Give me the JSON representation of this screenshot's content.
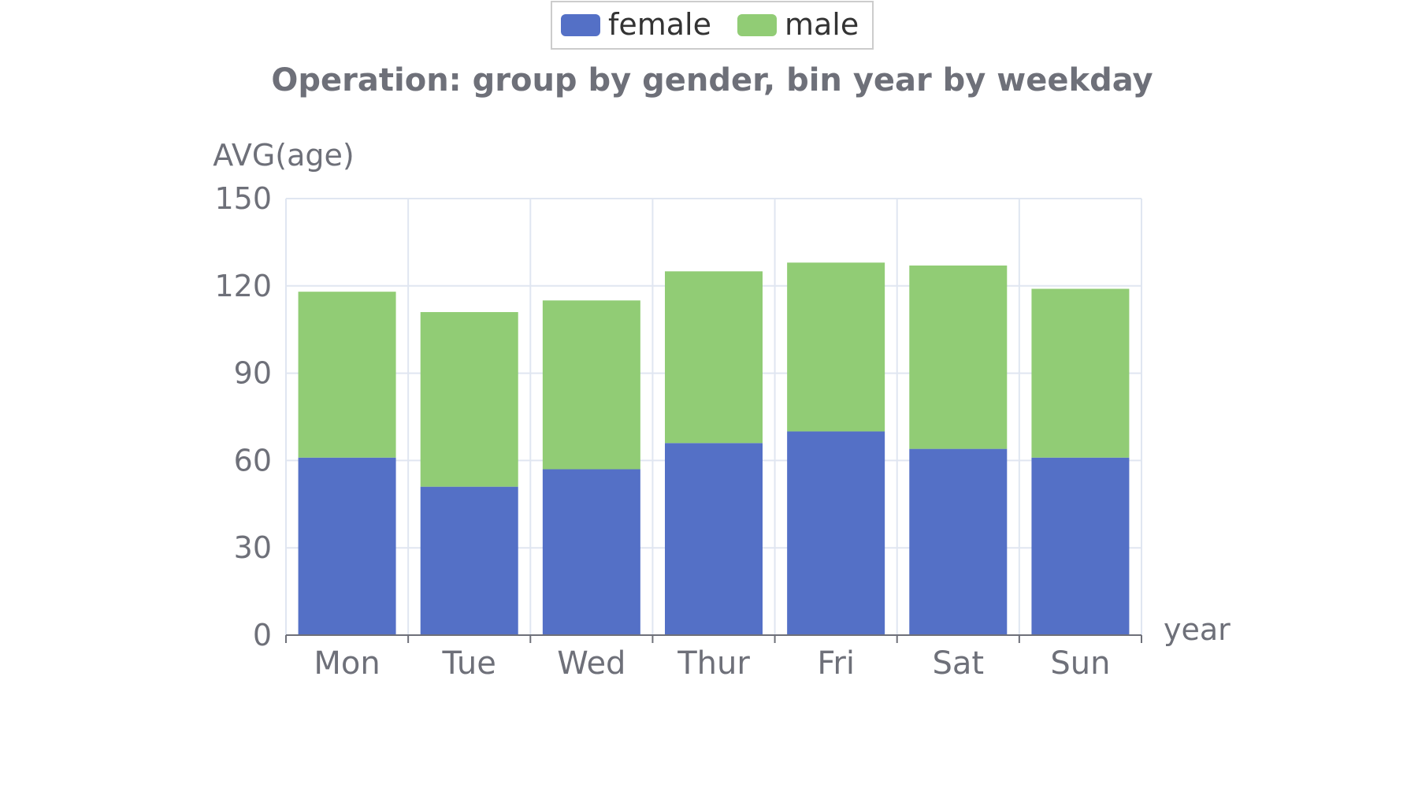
{
  "chart_data": {
    "type": "bar",
    "stacked": true,
    "title": "Operation: group by gender, bin year by weekday",
    "xlabel": "year",
    "ylabel": "AVG(age)",
    "ylim": [
      0,
      150
    ],
    "yticks": [
      "0",
      "30",
      "60",
      "90",
      "120",
      "150"
    ],
    "categories": [
      "Mon",
      "Tue",
      "Wed",
      "Thur",
      "Fri",
      "Sat",
      "Sun"
    ],
    "series": [
      {
        "name": "female",
        "color": "#5470c6",
        "values": [
          61,
          51,
          57,
          66,
          70,
          64,
          61
        ]
      },
      {
        "name": "male",
        "color": "#91cc75",
        "values": [
          57,
          60,
          58,
          59,
          58,
          63,
          58
        ]
      }
    ],
    "legend_position": "top-center",
    "grid": true
  }
}
